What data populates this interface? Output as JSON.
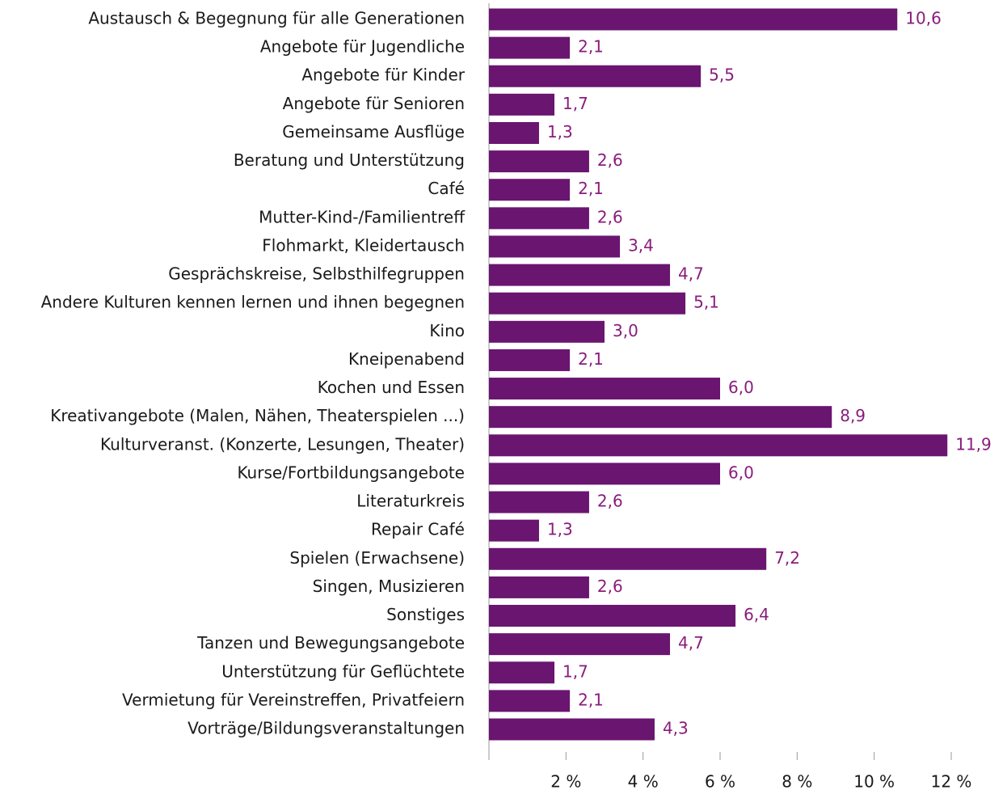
{
  "chart_data": {
    "type": "bar",
    "orientation": "horizontal",
    "categories": [
      "Austausch & Begegnung für alle Generationen",
      "Angebote für Jugendliche",
      "Angebote für Kinder",
      "Angebote für Senioren",
      "Gemeinsame Ausflüge",
      "Beratung und Unterstützung",
      "Café",
      "Mutter-Kind-/Familientreff",
      "Flohmarkt, Kleidertausch",
      "Gesprächskreise, Selbsthilfegruppen",
      "Andere Kulturen kennen lernen und ihnen begegnen",
      "Kino",
      "Kneipenabend",
      "Kochen und Essen",
      "Kreativangebote (Malen, Nähen, Theaterspielen ...)",
      "Kulturveranst. (Konzerte, Lesungen, Theater)",
      "Kurse/Fortbildungsangebote",
      "Literaturkreis",
      "Repair Café",
      "Spielen (Erwachsene)",
      "Singen, Musizieren",
      "Sonstiges",
      "Tanzen und Bewegungsangebote",
      "Unterstützung für Geflüchtete",
      "Vermietung für Vereinstreffen, Privatfeiern",
      "Vorträge/Bildungsveranstaltungen"
    ],
    "values": [
      10.6,
      2.1,
      5.5,
      1.7,
      1.3,
      2.6,
      2.1,
      2.6,
      3.4,
      4.7,
      5.1,
      3.0,
      2.1,
      6.0,
      8.9,
      11.9,
      6.0,
      2.6,
      1.3,
      7.2,
      2.6,
      6.4,
      4.7,
      1.7,
      2.1,
      4.3
    ],
    "value_labels": [
      "10,6",
      "2,1",
      "5,5",
      "1,7",
      "1,3",
      "2,6",
      "2,1",
      "2,6",
      "3,4",
      "4,7",
      "5,1",
      "3,0",
      "2,1",
      "6,0",
      "8,9",
      "11,9",
      "6,0",
      "2,6",
      "1,3",
      "7,2",
      "2,6",
      "6,4",
      "4,7",
      "1,7",
      "2,1",
      "4,3"
    ],
    "color": "#6a1570",
    "xlim": [
      0,
      12
    ],
    "xticks": [
      {
        "value": 2,
        "label": "2 %"
      },
      {
        "value": 4,
        "label": "4 %"
      },
      {
        "value": 6,
        "label": "6 %"
      },
      {
        "value": 8,
        "label": "8 %"
      },
      {
        "value": 10,
        "label": "10 %"
      },
      {
        "value": 12,
        "label": "12 %"
      }
    ]
  }
}
